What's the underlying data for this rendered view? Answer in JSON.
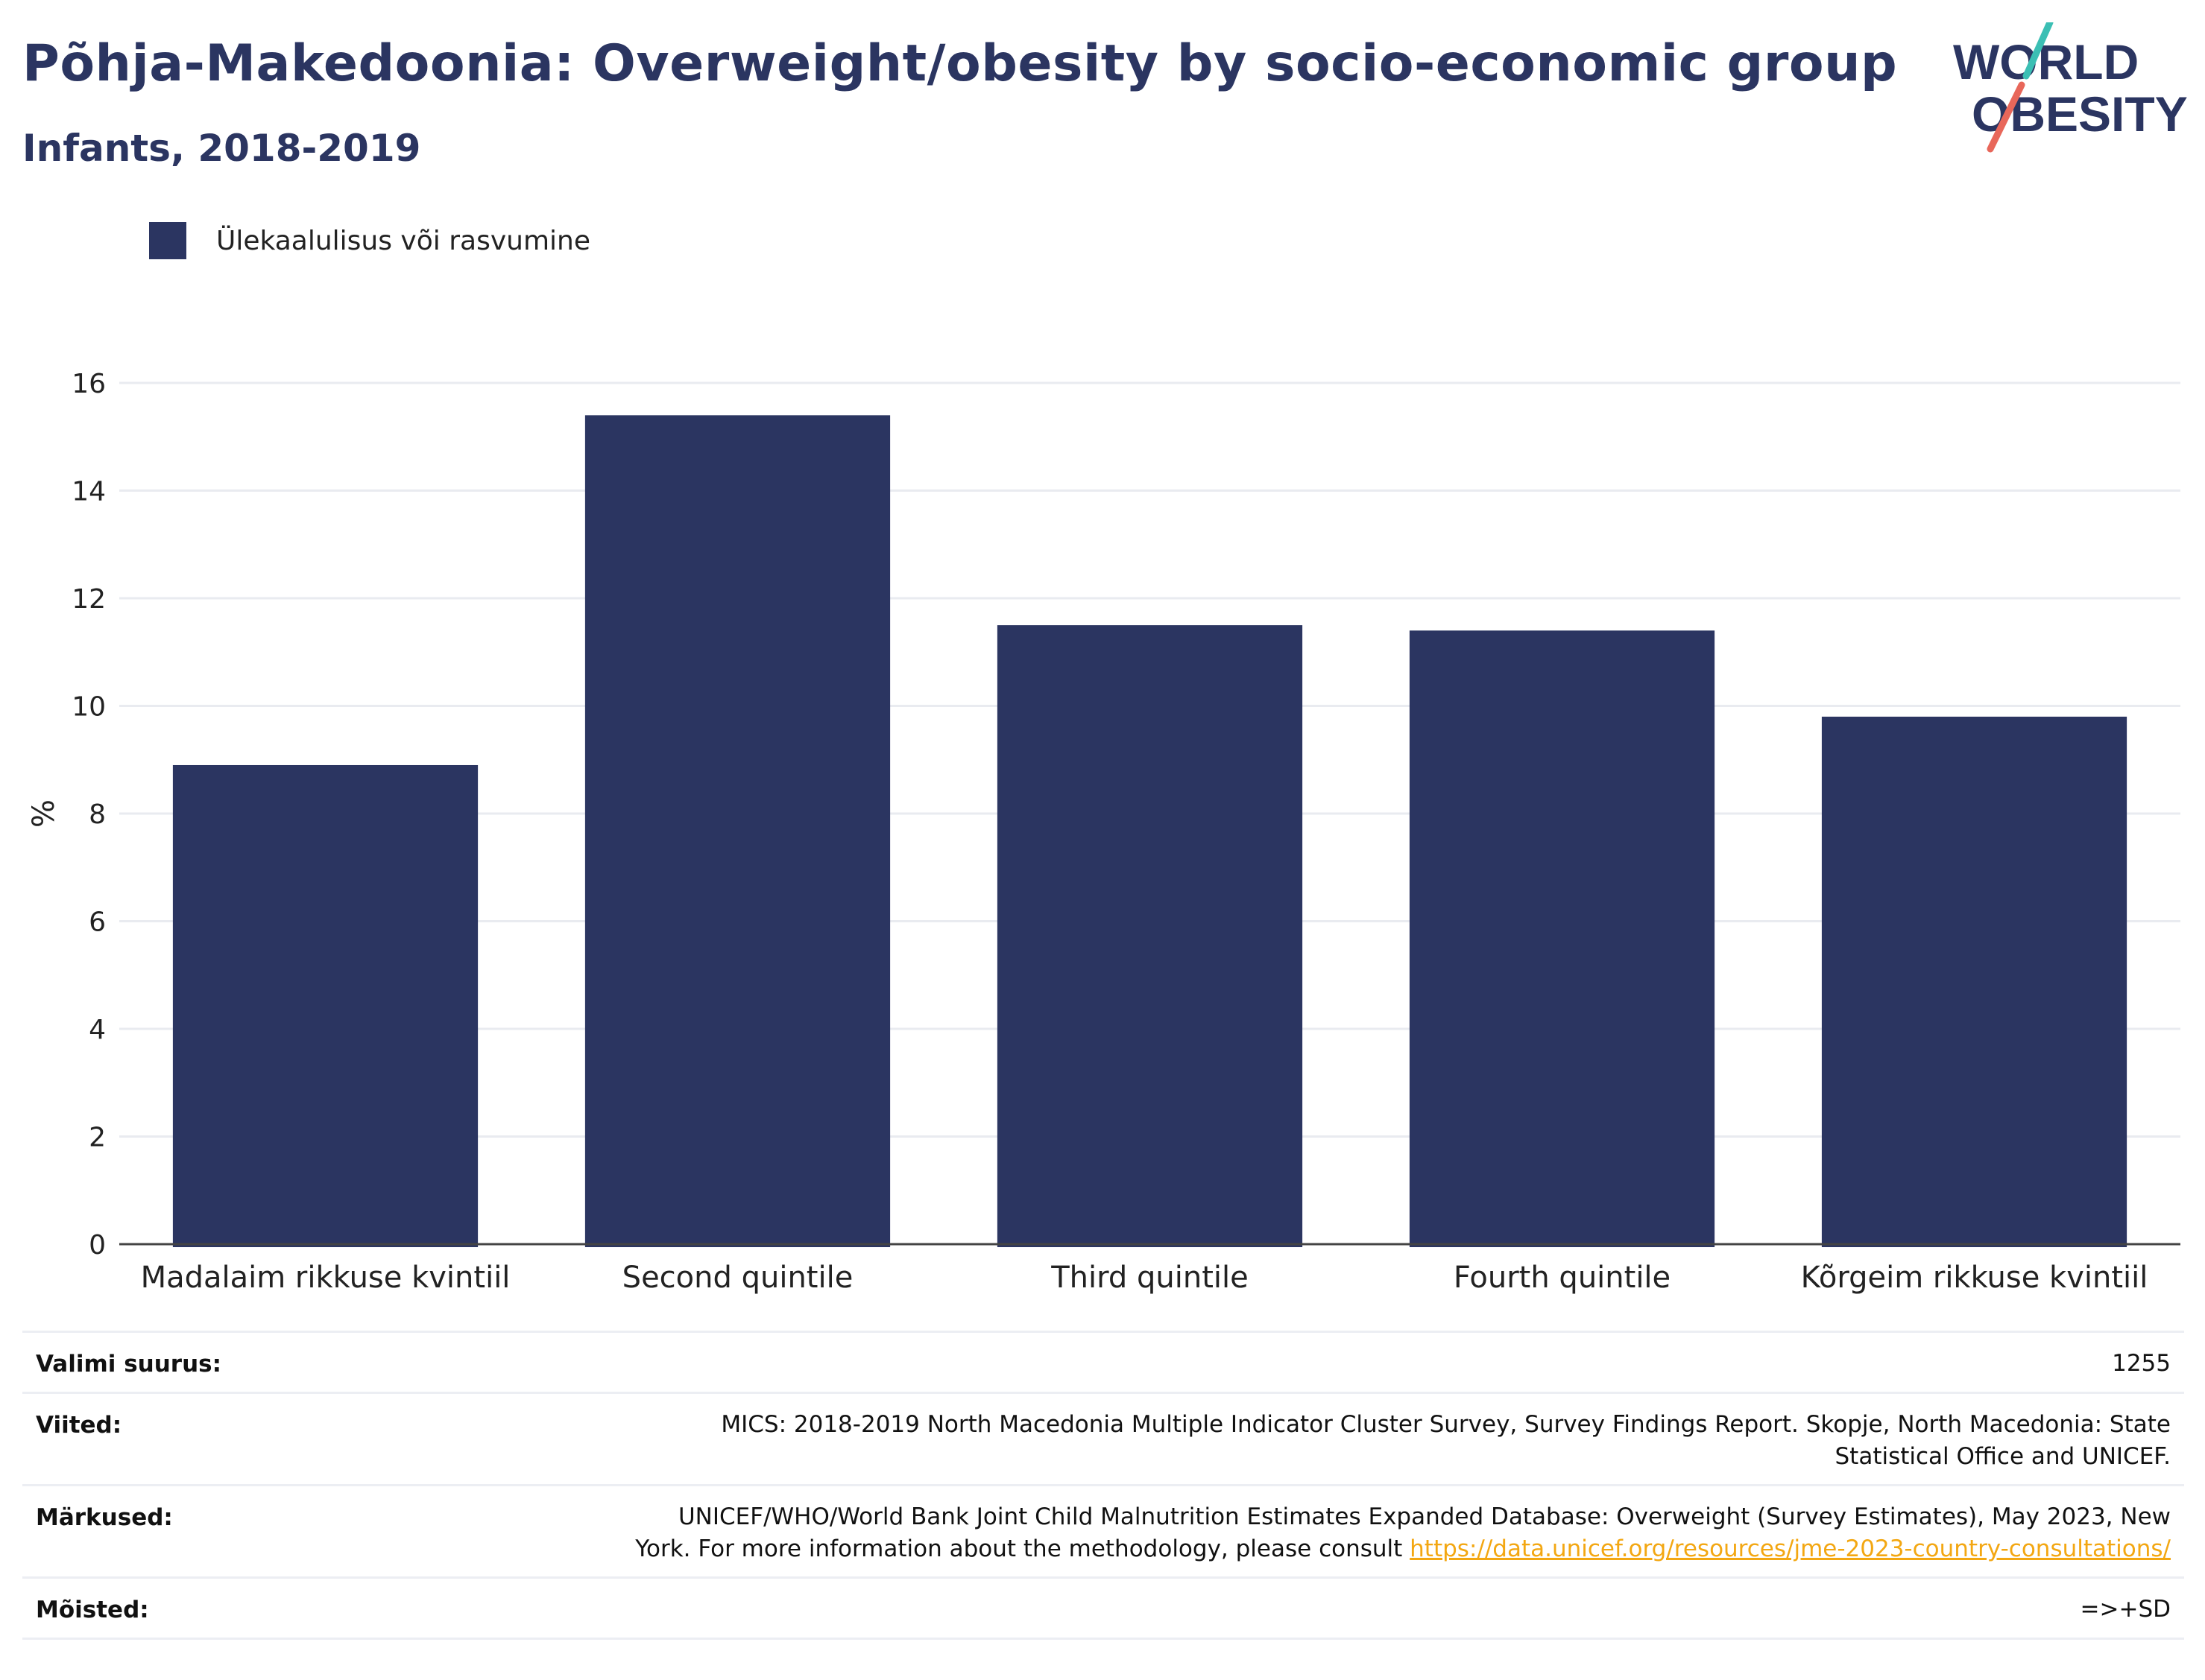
{
  "header": {
    "title": "Põhja-Makedoonia: Overweight/obesity by socio-economic group",
    "subtitle": "Infants, 2018-2019"
  },
  "logo": {
    "line1": "WORLD",
    "line2": "OBESITY",
    "colors": {
      "text": "#2b3561",
      "slash_top": "#3bbfb4",
      "slash_bottom": "#e8675a"
    }
  },
  "colors": {
    "bar": "#2b3561",
    "grid": "#e9ebf0",
    "axis": "#444444",
    "link": "#f3a712"
  },
  "chart_data": {
    "type": "bar",
    "categories": [
      "Madalaim rikkuse kvintiil",
      "Second quintile",
      "Third quintile",
      "Fourth quintile",
      "Kõrgeim rikkuse kvintiil"
    ],
    "series": [
      {
        "name": "Ülekaalulisus või rasvumine",
        "values": [
          8.9,
          15.4,
          11.5,
          11.4,
          9.8
        ]
      }
    ],
    "ylabel": "%",
    "xlabel": "",
    "ylim": [
      0,
      16
    ],
    "yticks": [
      0,
      2,
      4,
      6,
      8,
      10,
      12,
      14,
      16
    ],
    "grid": true,
    "legend": "top-left"
  },
  "meta": {
    "sample_label": "Valimi suurus:",
    "sample_value": "1255",
    "refs_label": "Viited:",
    "refs_value": "MICS: 2018-2019 North Macedonia Multiple Indicator Cluster Survey, Survey Findings Report. Skopje, North Macedonia: State Statistical Office and UNICEF.",
    "notes_label": "Märkused:",
    "notes_value": "UNICEF/WHO/World Bank Joint Child Malnutrition Estimates Expanded Database: Overweight (Survey Estimates), May 2023, New York. For more information about the methodology, please consult",
    "notes_link": "https://data.unicef.org/resources/jme-2023-country-consultations/",
    "defs_label": "Mõisted:",
    "defs_value": "=>+SD"
  }
}
